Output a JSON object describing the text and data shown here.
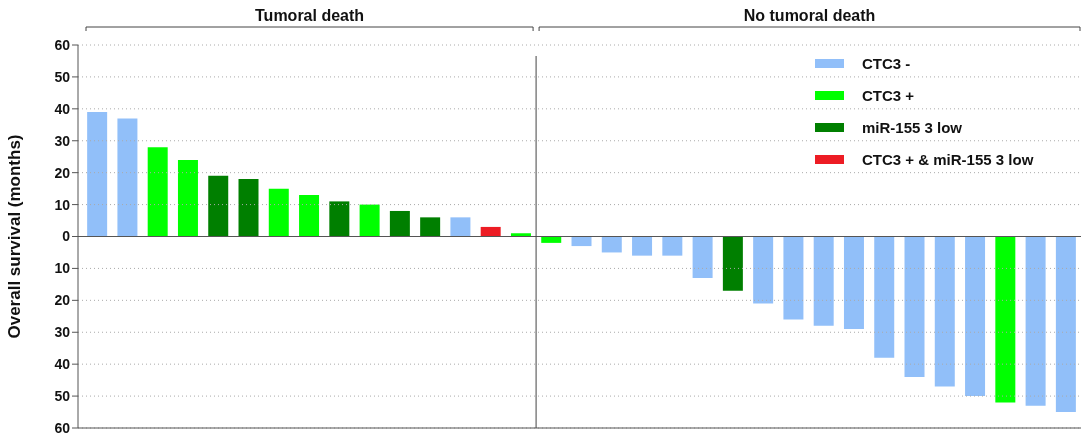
{
  "chart_data": {
    "type": "bar",
    "stacked": true,
    "ylabel": "Overall survival (months)",
    "annotations": [
      "Tumoral death",
      "No tumoral death"
    ],
    "categories": [
      null,
      null,
      null,
      null,
      null,
      null,
      null,
      null,
      null,
      null,
      null,
      null,
      null,
      null,
      null,
      null,
      null,
      null,
      null,
      null,
      null,
      null,
      null,
      null,
      null,
      null,
      null,
      null,
      null,
      null,
      null,
      null,
      null
    ],
    "series": [
      {
        "name": "CTC3 -",
        "color": "#91bff9",
        "values": [
          39,
          37,
          null,
          null,
          null,
          null,
          null,
          null,
          null,
          null,
          null,
          null,
          6,
          null,
          null,
          null,
          -3,
          -5,
          -6,
          -6,
          -13,
          null,
          -21,
          -26,
          -28,
          -29,
          -38,
          -44,
          -47,
          -50,
          null,
          -53,
          -55
        ]
      },
      {
        "name": "CTC3 +",
        "color": "#00ff00",
        "values": [
          null,
          null,
          28,
          24,
          null,
          null,
          15,
          13,
          null,
          10,
          null,
          null,
          null,
          null,
          1,
          -2,
          null,
          null,
          null,
          null,
          null,
          null,
          null,
          null,
          null,
          null,
          null,
          null,
          null,
          null,
          -52,
          null,
          null
        ]
      },
      {
        "name": "miR-155 3 low",
        "color": "#007f00",
        "values": [
          null,
          null,
          null,
          null,
          19,
          18,
          null,
          null,
          11,
          null,
          8,
          6,
          null,
          null,
          null,
          null,
          null,
          null,
          null,
          null,
          null,
          -17,
          null,
          null,
          null,
          null,
          null,
          null,
          null,
          null,
          null,
          null,
          null
        ]
      },
      {
        "name": "CTC3 + & miR-155 3 low",
        "color": "#ed1c24",
        "values": [
          null,
          null,
          null,
          null,
          null,
          null,
          null,
          null,
          null,
          null,
          null,
          null,
          null,
          3,
          null,
          null,
          null,
          null,
          null,
          null,
          null,
          null,
          null,
          null,
          null,
          null,
          null,
          null,
          null,
          null,
          null,
          null,
          null
        ]
      }
    ],
    "ylim": [
      -60,
      60
    ],
    "yticks": [
      60,
      50,
      40,
      30,
      20,
      10,
      0,
      {
        "value": -10,
        "label": "10"
      },
      {
        "value": -20,
        "label": "20"
      },
      {
        "value": -30,
        "label": "30"
      },
      {
        "value": -40,
        "label": "40"
      },
      {
        "value": -50,
        "label": "50"
      },
      {
        "value": -60,
        "label": "60"
      }
    ],
    "grid": "y",
    "legend": "top right"
  }
}
